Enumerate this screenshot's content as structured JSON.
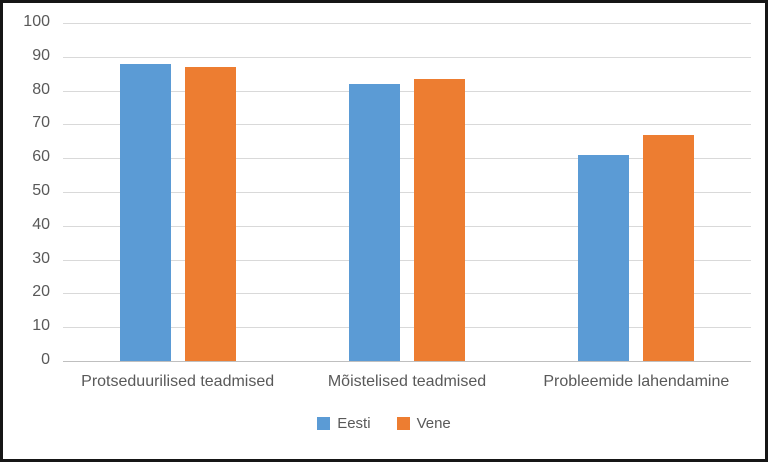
{
  "chart_data": {
    "type": "bar",
    "title": "",
    "xlabel": "",
    "ylabel": "",
    "categories": [
      "Protseduurilised teadmised",
      "Mõistelised teadmised",
      "Probleemide lahendamine"
    ],
    "series": [
      {
        "name": "Eesti",
        "color": "#5B9BD5",
        "values": [
          88,
          82,
          61
        ]
      },
      {
        "name": "Vene",
        "color": "#ED7D31",
        "values": [
          87,
          83.5,
          67
        ]
      }
    ],
    "ylim": [
      0,
      100
    ],
    "yticks": [
      "100",
      "90",
      "80",
      "70",
      "60",
      "50",
      "40",
      "30",
      "20",
      "10",
      "0"
    ],
    "grid": "horizontal",
    "legend_position": "bottom",
    "colors": {
      "gridline": "#d9d9d9",
      "axis_line": "#bfbfbf",
      "axis_text": "#595959",
      "frame_border": "#161616",
      "background": "#ffffff"
    }
  }
}
